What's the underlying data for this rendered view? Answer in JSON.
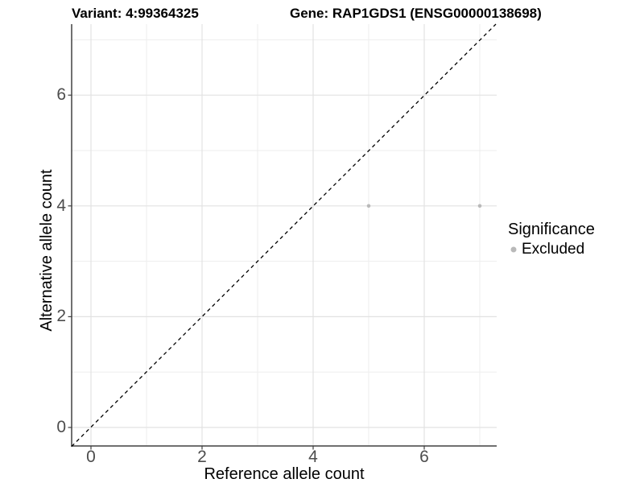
{
  "chart_data": {
    "type": "scatter",
    "title_left": "Variant: 4:99364325",
    "title_right": "Gene: RAP1GDS1 (ENSG00000138698)",
    "xlabel": "Reference allele count",
    "ylabel": "Alternative allele count",
    "xlim": [
      -0.35,
      7.3
    ],
    "ylim": [
      -0.35,
      7.3
    ],
    "x_ticks": [
      0,
      2,
      4,
      6
    ],
    "y_ticks": [
      0,
      2,
      4,
      6
    ],
    "x_minor_ticks": [
      1,
      3,
      5,
      7
    ],
    "y_minor_ticks": [
      1,
      3,
      5,
      7
    ],
    "grid": "major+minor on white background",
    "series": [
      {
        "name": "Excluded",
        "color": "#b9b9b9",
        "points": [
          {
            "x": 5,
            "y": 4
          },
          {
            "x": 7,
            "y": 4
          }
        ]
      }
    ],
    "reference_line": {
      "type": "identity y=x",
      "style": "dashed",
      "color": "#000000"
    },
    "legend": {
      "title": "Significance",
      "position": "right",
      "entries": [
        {
          "label": "Excluded",
          "color": "#b9b9b9"
        }
      ]
    }
  },
  "colors": {
    "grid_major": "#e2e2e2",
    "grid_minor": "#ececec",
    "axis_line": "#404040",
    "tick_text": "#4d4d4d",
    "title_text": "#000000"
  }
}
